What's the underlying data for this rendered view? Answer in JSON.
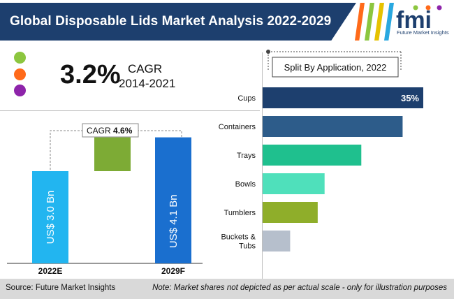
{
  "header": {
    "title": "Global Disposable Lids Market Analysis 2022-2029",
    "logo_letters": "fmi",
    "logo_caption": "Future Market Insights",
    "bar_color": "#1d3f6e",
    "stripe_colors": [
      "#ff6a1a",
      "#8cc63f",
      "#e6c200",
      "#29a8e0"
    ]
  },
  "cagr_panel": {
    "value": "3.2%",
    "label": "CAGR",
    "years": "2014-2021",
    "dot_colors": [
      "#8cc63f",
      "#ff6a1a",
      "#8e24aa"
    ]
  },
  "chart_data": [
    {
      "type": "bar",
      "name": "market-size",
      "categories": [
        "2022E",
        "2029F"
      ],
      "values": [
        3.0,
        4.1
      ],
      "value_labels": [
        "US$ 3.0 Bn",
        "US$ 4.1 Bn"
      ],
      "bar_colors": [
        "#22b5f0",
        "#1a6fcf"
      ],
      "increment_color": "#7dab35",
      "cagr_label": "CAGR",
      "cagr_value": "4.6%"
    },
    {
      "type": "bar",
      "orientation": "horizontal",
      "title": "Split By Application, 2022",
      "categories": [
        "Cups",
        "Containers",
        "Trays",
        "Bowls",
        "Tumblers",
        "Buckets & Tubs"
      ],
      "values": [
        35,
        30.5,
        21.5,
        13.5,
        12,
        6
      ],
      "data_labels": [
        "35%",
        "",
        "",
        "",
        "",
        ""
      ],
      "colors": [
        "#1d3f6e",
        "#2d5c8a",
        "#1fc08e",
        "#4fe0bb",
        "#8fae2a",
        "#b6bfcc"
      ]
    }
  ],
  "footer": {
    "source": "Source: Future Market Insights",
    "note": "Note: Market shares not depicted as per actual scale - only for illustration purposes"
  }
}
